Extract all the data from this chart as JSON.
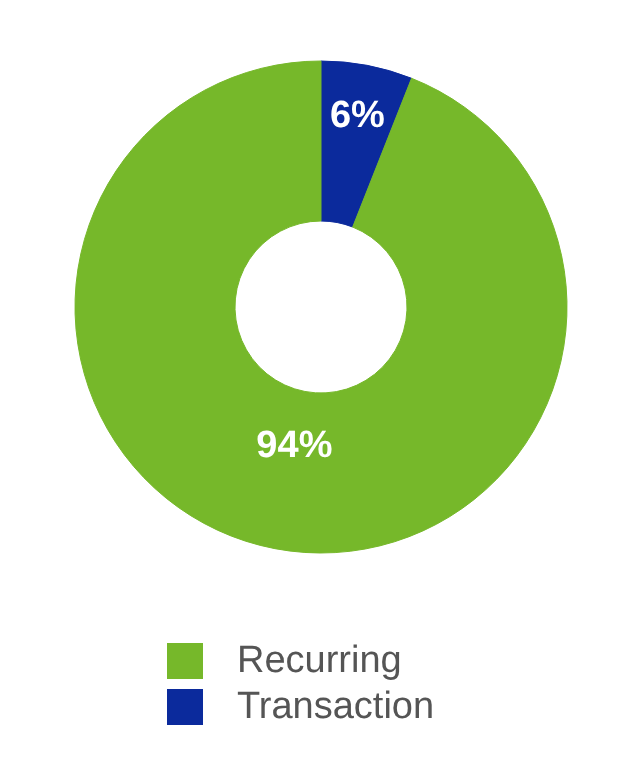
{
  "chart_data": {
    "type": "donut",
    "categories": [
      "Recurring",
      "Transaction"
    ],
    "values": [
      94,
      6
    ],
    "colors": [
      "#76b82a",
      "#0b2a9c"
    ],
    "value_labels": [
      "94%",
      "6%"
    ],
    "legend": "bottom"
  }
}
